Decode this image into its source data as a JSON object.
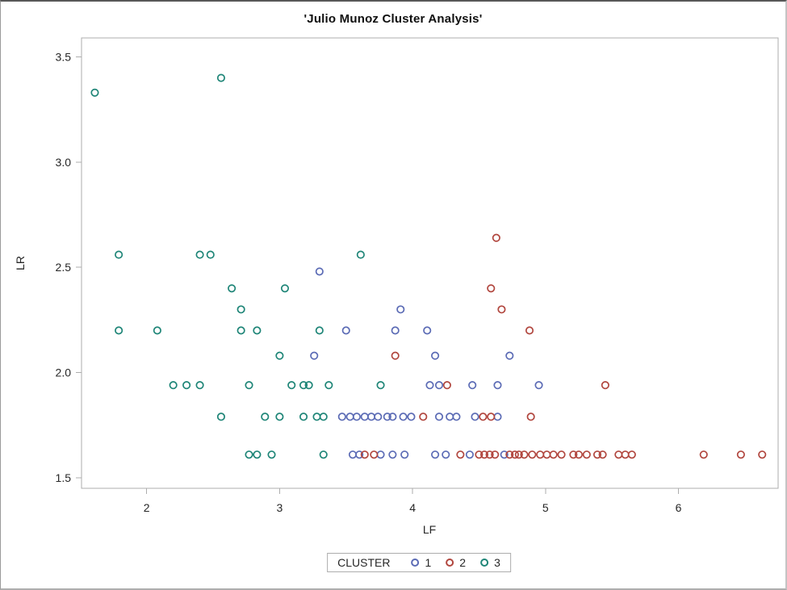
{
  "chart_data": {
    "type": "scatter",
    "title": "'Julio Munoz Cluster Analysis'",
    "xlabel": "LF",
    "ylabel": "LR",
    "xlim": [
      1.51,
      6.75
    ],
    "ylim": [
      1.45,
      3.59
    ],
    "grid": false,
    "frame_color": "#adadad",
    "text_color": "#262626",
    "marker_radius": 4.2,
    "xticks": [
      {
        "value": 2,
        "label": "2"
      },
      {
        "value": 3,
        "label": "3"
      },
      {
        "value": 4,
        "label": "4"
      },
      {
        "value": 5,
        "label": "5"
      },
      {
        "value": 6,
        "label": "6"
      }
    ],
    "yticks": [
      {
        "value": 1.5,
        "label": "1.5"
      },
      {
        "value": 2.0,
        "label": "2.0"
      },
      {
        "value": 2.5,
        "label": "2.5"
      },
      {
        "value": 3.0,
        "label": "3.0"
      },
      {
        "value": 3.5,
        "label": "3.5"
      }
    ],
    "legend": {
      "title": "CLUSTER",
      "position": "bottom-center"
    },
    "series": [
      {
        "name": "1",
        "color": "#5b6bb5",
        "points": [
          [
            3.3,
            2.48
          ],
          [
            3.91,
            2.3
          ],
          [
            3.5,
            2.2
          ],
          [
            3.87,
            2.2
          ],
          [
            4.11,
            2.2
          ],
          [
            3.26,
            2.08
          ],
          [
            4.17,
            2.08
          ],
          [
            4.73,
            2.08
          ],
          [
            4.13,
            1.94
          ],
          [
            4.2,
            1.94
          ],
          [
            4.45,
            1.94
          ],
          [
            4.64,
            1.94
          ],
          [
            4.95,
            1.94
          ],
          [
            3.47,
            1.79
          ],
          [
            3.53,
            1.79
          ],
          [
            3.58,
            1.79
          ],
          [
            3.64,
            1.79
          ],
          [
            3.69,
            1.79
          ],
          [
            3.74,
            1.79
          ],
          [
            3.81,
            1.79
          ],
          [
            3.85,
            1.79
          ],
          [
            3.93,
            1.79
          ],
          [
            3.99,
            1.79
          ],
          [
            4.2,
            1.79
          ],
          [
            4.28,
            1.79
          ],
          [
            4.33,
            1.79
          ],
          [
            4.47,
            1.79
          ],
          [
            4.64,
            1.79
          ],
          [
            3.55,
            1.61
          ],
          [
            3.6,
            1.61
          ],
          [
            3.76,
            1.61
          ],
          [
            3.85,
            1.61
          ],
          [
            3.94,
            1.61
          ],
          [
            4.17,
            1.61
          ],
          [
            4.25,
            1.61
          ],
          [
            4.43,
            1.61
          ],
          [
            4.69,
            1.61
          ]
        ]
      },
      {
        "name": "2",
        "color": "#b1463e",
        "points": [
          [
            4.63,
            2.64
          ],
          [
            4.59,
            2.4
          ],
          [
            4.67,
            2.3
          ],
          [
            4.88,
            2.2
          ],
          [
            3.87,
            2.08
          ],
          [
            4.26,
            1.94
          ],
          [
            5.45,
            1.94
          ],
          [
            4.08,
            1.79
          ],
          [
            4.53,
            1.79
          ],
          [
            4.59,
            1.79
          ],
          [
            4.89,
            1.79
          ],
          [
            3.64,
            1.61
          ],
          [
            3.71,
            1.61
          ],
          [
            4.36,
            1.61
          ],
          [
            4.5,
            1.61
          ],
          [
            4.54,
            1.61
          ],
          [
            4.58,
            1.61
          ],
          [
            4.62,
            1.61
          ],
          [
            4.73,
            1.61
          ],
          [
            4.77,
            1.61
          ],
          [
            4.8,
            1.61
          ],
          [
            4.84,
            1.61
          ],
          [
            4.9,
            1.61
          ],
          [
            4.96,
            1.61
          ],
          [
            5.01,
            1.61
          ],
          [
            5.06,
            1.61
          ],
          [
            5.12,
            1.61
          ],
          [
            5.21,
            1.61
          ],
          [
            5.25,
            1.61
          ],
          [
            5.31,
            1.61
          ],
          [
            5.39,
            1.61
          ],
          [
            5.43,
            1.61
          ],
          [
            5.55,
            1.61
          ],
          [
            5.6,
            1.61
          ],
          [
            5.65,
            1.61
          ],
          [
            6.19,
            1.61
          ],
          [
            6.47,
            1.61
          ],
          [
            6.63,
            1.61
          ]
        ]
      },
      {
        "name": "3",
        "color": "#1e8577",
        "points": [
          [
            1.61,
            3.33
          ],
          [
            2.56,
            3.4
          ],
          [
            1.79,
            2.56
          ],
          [
            2.4,
            2.56
          ],
          [
            2.48,
            2.56
          ],
          [
            3.61,
            2.56
          ],
          [
            2.64,
            2.4
          ],
          [
            3.04,
            2.4
          ],
          [
            2.71,
            2.3
          ],
          [
            1.79,
            2.2
          ],
          [
            2.08,
            2.2
          ],
          [
            2.71,
            2.2
          ],
          [
            2.83,
            2.2
          ],
          [
            3.3,
            2.2
          ],
          [
            3.0,
            2.08
          ],
          [
            2.2,
            1.94
          ],
          [
            2.3,
            1.94
          ],
          [
            2.4,
            1.94
          ],
          [
            2.77,
            1.94
          ],
          [
            3.09,
            1.94
          ],
          [
            3.18,
            1.94
          ],
          [
            3.22,
            1.94
          ],
          [
            3.37,
            1.94
          ],
          [
            3.76,
            1.94
          ],
          [
            2.56,
            1.79
          ],
          [
            2.89,
            1.79
          ],
          [
            3.0,
            1.79
          ],
          [
            3.18,
            1.79
          ],
          [
            3.28,
            1.79
          ],
          [
            3.33,
            1.79
          ],
          [
            2.77,
            1.61
          ],
          [
            2.83,
            1.61
          ],
          [
            2.94,
            1.61
          ],
          [
            3.33,
            1.61
          ]
        ]
      }
    ]
  }
}
